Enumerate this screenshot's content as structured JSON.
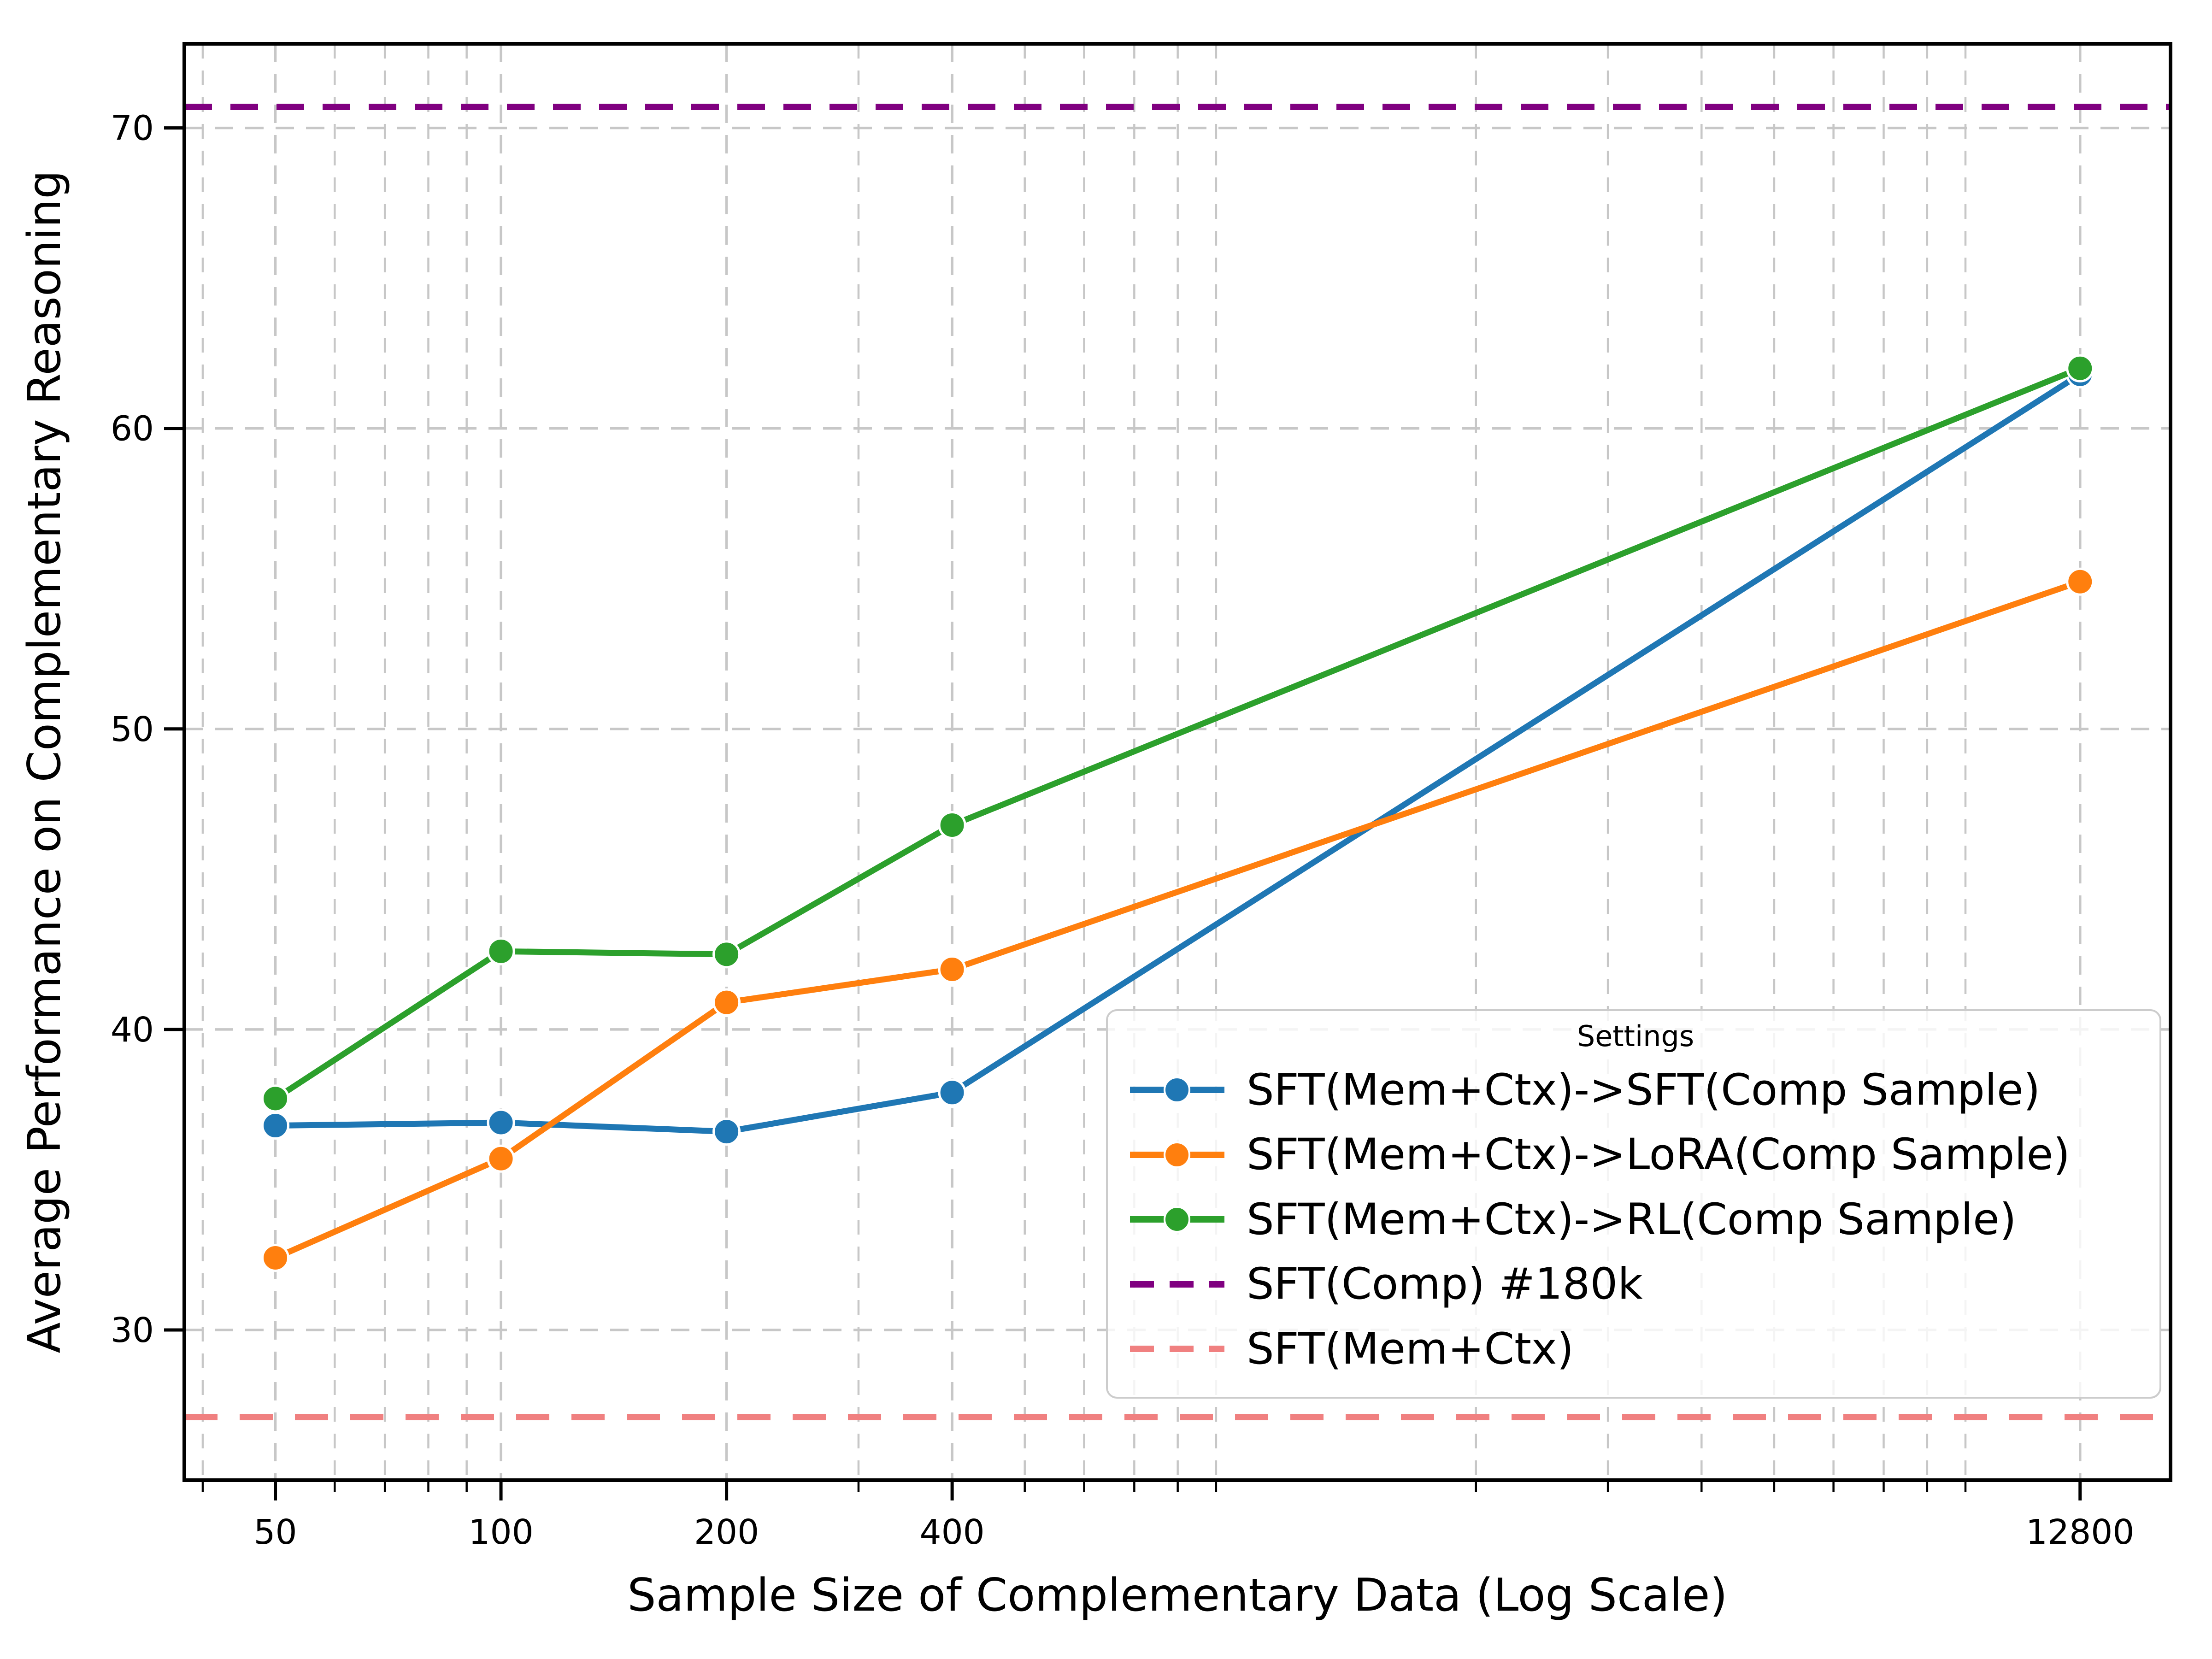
{
  "chart_data": {
    "type": "line",
    "title": "",
    "xlabel": "Sample Size of Complementary Data (Log Scale)",
    "ylabel": "Average Performance on Complementary Reasoning",
    "x_scale": "log",
    "grid": true,
    "x": [
      50,
      100,
      200,
      400,
      12800
    ],
    "x_ticks": [
      "50",
      "100",
      "200",
      "400",
      "12800"
    ],
    "y_ticks": [
      30,
      40,
      50,
      60,
      70
    ],
    "xlim": [
      37.8,
      16900
    ],
    "ylim": [
      25.0,
      72.8
    ],
    "x_minor_gridlines": [
      40,
      60,
      70,
      80,
      90,
      300,
      500,
      600,
      700,
      800,
      900,
      2000,
      3000,
      4000,
      5000,
      6000,
      7000,
      8000,
      9000
    ],
    "legend_title": "Settings",
    "legend_position": "lower right",
    "series": [
      {
        "name": "SFT(Mem+Ctx)->SFT(Comp Sample)",
        "color": "#1f77b4",
        "style": "solid",
        "marker": "circle",
        "values": [
          36.8,
          36.9,
          36.6,
          37.9,
          61.8
        ]
      },
      {
        "name": "SFT(Mem+Ctx)->LoRA(Comp Sample)",
        "color": "#ff7f0e",
        "style": "solid",
        "marker": "circle",
        "values": [
          32.4,
          35.7,
          40.9,
          42.0,
          54.9
        ]
      },
      {
        "name": "SFT(Mem+Ctx)->RL(Comp Sample)",
        "color": "#2ca02c",
        "style": "solid",
        "marker": "circle",
        "values": [
          37.7,
          42.6,
          42.5,
          46.8,
          62.0
        ]
      }
    ],
    "hlines": [
      {
        "name": "SFT(Comp) #180k",
        "color": "#800080",
        "style": "dashed",
        "value": 70.7
      },
      {
        "name": "SFT(Mem+Ctx)",
        "color": "#f08080",
        "style": "dashed",
        "value": 27.1
      }
    ],
    "colors": {
      "grid": "#c7c7c7",
      "spine": "#000000",
      "marker_edge": "#ffffff"
    }
  }
}
